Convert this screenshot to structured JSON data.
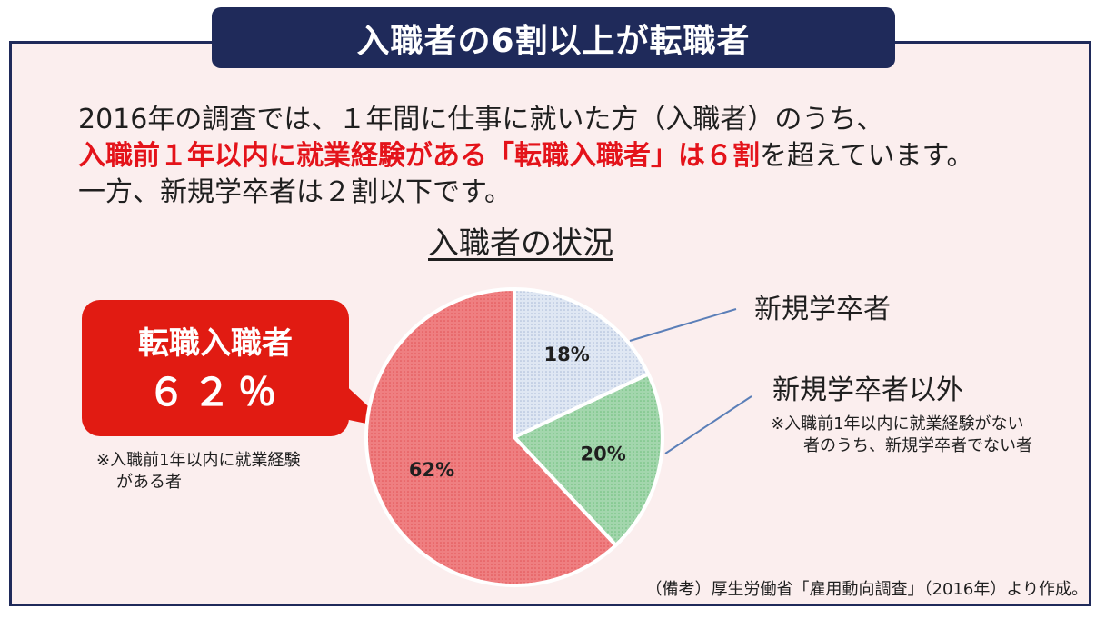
{
  "header": {
    "title": "入職者の6割以上が転職者"
  },
  "lead": {
    "line1": "2016年の調査では、１年間に仕事に就いた方（入職者）のうち、",
    "line2_highlight": "入職前１年以内に就業経験がある「転職入職者」は６割",
    "line2_rest": "を超えています。",
    "line3": "一方、新規学卒者は２割以下です。"
  },
  "callout": {
    "name": "転職入職者",
    "percent": "６２％",
    "note_line1": "※入職前1年以内に就業経験",
    "note_line2": "がある者"
  },
  "labels": {
    "newgrad": "新規学卒者",
    "other": "新規学卒者以外",
    "other_note_line1": "※入職前1年以内に就業経験がない",
    "other_note_line2": "者のうち、新規学卒者でない者"
  },
  "source": "（備考）厚生労働省「雇用動向調査」（2016年）より作成。",
  "colors": {
    "navy": "#1f2a5a",
    "red": "#e11b12",
    "highlight_text": "#e4131a",
    "frame_bg": "#fbeeee",
    "blue_slice": "#dfe7f3",
    "green_slice": "#a3d6ad",
    "red_slice": "#ef7f81"
  },
  "chart_data": {
    "type": "pie",
    "title": "入職者の状況",
    "categories": [
      "新規学卒者",
      "新規学卒者以外",
      "転職入職者"
    ],
    "values": [
      18,
      20,
      62
    ],
    "data_labels": [
      "18%",
      "20%",
      "62%"
    ]
  }
}
